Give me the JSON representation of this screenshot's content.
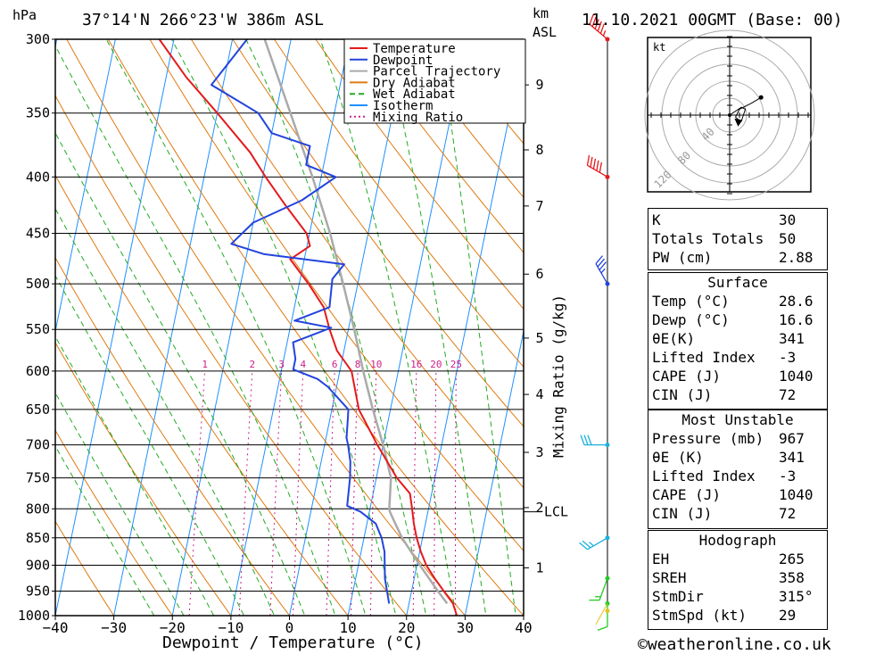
{
  "header": {
    "location": "37°14'N  266°23'W  386m  ASL",
    "datetime": "11.10.2021  00GMT  (Base: 00)",
    "left_unit": "hPa",
    "right_unit_1": "km",
    "right_unit_2": "ASL"
  },
  "footer": {
    "copyright": "©weatheronline.co.uk"
  },
  "chart_data": {
    "type": "line",
    "subtype": "skew-T log-P sounding",
    "xlabel": "Dewpoint / Temperature (°C)",
    "ylabel_left": "hPa",
    "ylabel_right": "Mixing Ratio (g/kg)",
    "xlim": [
      -40,
      40
    ],
    "ylim": [
      1000,
      300
    ],
    "x_ticks": [
      -40,
      -30,
      -20,
      -10,
      0,
      10,
      20,
      30,
      40
    ],
    "pressure_ticks": [
      300,
      350,
      400,
      450,
      500,
      550,
      600,
      650,
      700,
      750,
      800,
      850,
      900,
      950,
      1000
    ],
    "km_ticks": [
      {
        "label": "1",
        "p": 905
      },
      {
        "label": "2",
        "p": 798
      },
      {
        "label": "3",
        "p": 711
      },
      {
        "label": "4",
        "p": 630
      },
      {
        "label": "5",
        "p": 560
      },
      {
        "label": "6",
        "p": 490
      },
      {
        "label": "7",
        "p": 425
      },
      {
        "label": "8",
        "p": 378
      },
      {
        "label": "9",
        "p": 330
      }
    ],
    "lcl": {
      "label": "LCL",
      "p": 805
    },
    "mixing_ratio_labels": [
      "1",
      "2",
      "3",
      "4",
      "6",
      "8",
      "10",
      "16",
      "20",
      "25"
    ],
    "mixing_ratio_values": [
      1,
      2,
      3,
      4,
      6,
      8,
      10,
      16,
      20,
      25
    ],
    "legend": [
      "Temperature",
      "Dewpoint",
      "Parcel Trajectory",
      "Dry Adiabat",
      "Wet Adiabat",
      "Isotherm",
      "Mixing Ratio"
    ],
    "colors": {
      "temperature": "#e41a1c",
      "dewpoint": "#2244dd",
      "parcel": "#aaaaaa",
      "dry_adiabat": "#e07a10",
      "wet_adiabat": "#22aa22",
      "isotherm": "#1e90ff",
      "mixing_ratio": "#cc2288"
    },
    "series": [
      {
        "name": "Temperature",
        "points": [
          [
            1000,
            28.6
          ],
          [
            975,
            27.5
          ],
          [
            950,
            25.5
          ],
          [
            925,
            23.5
          ],
          [
            900,
            21.6
          ],
          [
            875,
            20.2
          ],
          [
            850,
            19.0
          ],
          [
            825,
            18.0
          ],
          [
            800,
            17.2
          ],
          [
            775,
            16.3
          ],
          [
            750,
            13.5
          ],
          [
            700,
            9.0
          ],
          [
            650,
            4.6
          ],
          [
            600,
            2.0
          ],
          [
            575,
            -1.2
          ],
          [
            550,
            -3.2
          ],
          [
            525,
            -5.0
          ],
          [
            500,
            -8.4
          ],
          [
            475,
            -12.4
          ],
          [
            462,
            -9.5
          ],
          [
            450,
            -10.5
          ],
          [
            425,
            -15.0
          ],
          [
            400,
            -19.5
          ],
          [
            380,
            -23.0
          ],
          [
            350,
            -30.0
          ],
          [
            325,
            -36.5
          ],
          [
            300,
            -42.5
          ]
        ]
      },
      {
        "name": "Dewpoint",
        "points": [
          [
            975,
            16.6
          ],
          [
            950,
            15.8
          ],
          [
            925,
            15.0
          ],
          [
            900,
            14.5
          ],
          [
            875,
            14.0
          ],
          [
            850,
            13.0
          ],
          [
            825,
            11.5
          ],
          [
            805,
            8.5
          ],
          [
            795,
            6.0
          ],
          [
            750,
            5.5
          ],
          [
            725,
            5.0
          ],
          [
            700,
            4.0
          ],
          [
            690,
            3.5
          ],
          [
            660,
            3.0
          ],
          [
            650,
            2.8
          ],
          [
            620,
            -1.5
          ],
          [
            610,
            -3.5
          ],
          [
            598,
            -8.0
          ],
          [
            585,
            -8.0
          ],
          [
            565,
            -9.0
          ],
          [
            548,
            -3.0
          ],
          [
            540,
            -9.5
          ],
          [
            525,
            -4.0
          ],
          [
            495,
            -4.5
          ],
          [
            480,
            -3.0
          ],
          [
            470,
            -17.0
          ],
          [
            460,
            -23.0
          ],
          [
            440,
            -20.0
          ],
          [
            420,
            -12.5
          ],
          [
            400,
            -7.5
          ],
          [
            390,
            -13.0
          ],
          [
            375,
            -13.0
          ],
          [
            365,
            -20.0
          ],
          [
            350,
            -23.0
          ],
          [
            330,
            -32.0
          ],
          [
            300,
            -27.5
          ]
        ]
      },
      {
        "name": "Parcel Trajectory",
        "points": [
          [
            975,
            26.5
          ],
          [
            950,
            24.5
          ],
          [
            900,
            20.5
          ],
          [
            850,
            16.5
          ],
          [
            820,
            14.5
          ],
          [
            805,
            13.5
          ],
          [
            800,
            13.3
          ],
          [
            750,
            12.5
          ],
          [
            700,
            10.0
          ],
          [
            650,
            7.0
          ],
          [
            600,
            4.0
          ],
          [
            550,
            1.0
          ],
          [
            500,
            -2.5
          ],
          [
            450,
            -6.5
          ],
          [
            400,
            -11.5
          ],
          [
            350,
            -17.5
          ],
          [
            300,
            -24.5
          ]
        ]
      }
    ],
    "hodograph": {
      "unit_label": "kt",
      "ring_labels": [
        "40",
        "80",
        "120"
      ],
      "ring_values": [
        20,
        40,
        60
      ],
      "trace": [
        [
          0,
          0
        ],
        [
          6,
          -4
        ],
        [
          8,
          -3
        ],
        [
          6,
          3
        ],
        [
          4,
          2
        ],
        [
          3,
          1
        ],
        [
          5,
          -3
        ],
        [
          11,
          -6
        ],
        [
          16,
          -9
        ]
      ],
      "storm_motion": [
        8,
        -6
      ]
    },
    "wind_barbs": [
      {
        "p": 300,
        "dir": 310,
        "spd": 55
      },
      {
        "p": 400,
        "dir": 300,
        "spd": 50
      },
      {
        "p": 500,
        "dir": 330,
        "spd": 35
      },
      {
        "p": 700,
        "dir": 270,
        "spd": 30
      },
      {
        "p": 850,
        "dir": 240,
        "spd": 25
      },
      {
        "p": 925,
        "dir": 200,
        "spd": 15
      },
      {
        "p": 975,
        "dir": 180,
        "spd": 10
      }
    ]
  },
  "indices": {
    "top": [
      {
        "label": "K",
        "value": "30"
      },
      {
        "label": "Totals Totals",
        "value": "50"
      },
      {
        "label": "PW (cm)",
        "value": "2.88"
      }
    ],
    "surface": {
      "title": "Surface",
      "rows": [
        {
          "label": "Temp (°C)",
          "value": "28.6"
        },
        {
          "label": "Dewp (°C)",
          "value": "16.6"
        },
        {
          "label": "θE(K)",
          "value": "341"
        },
        {
          "label": "Lifted Index",
          "value": "-3"
        },
        {
          "label": "CAPE (J)",
          "value": "1040"
        },
        {
          "label": "CIN (J)",
          "value": "72"
        }
      ]
    },
    "most_unstable": {
      "title": "Most Unstable",
      "rows": [
        {
          "label": "Pressure (mb)",
          "value": "967"
        },
        {
          "label": "θE (K)",
          "value": "341"
        },
        {
          "label": "Lifted Index",
          "value": "-3"
        },
        {
          "label": "CAPE (J)",
          "value": "1040"
        },
        {
          "label": "CIN (J)",
          "value": "72"
        }
      ]
    },
    "hodograph": {
      "title": "Hodograph",
      "rows": [
        {
          "label": "EH",
          "value": "265"
        },
        {
          "label": "SREH",
          "value": "358"
        },
        {
          "label": "StmDir",
          "value": "315°"
        },
        {
          "label": "StmSpd (kt)",
          "value": "29"
        }
      ]
    }
  }
}
